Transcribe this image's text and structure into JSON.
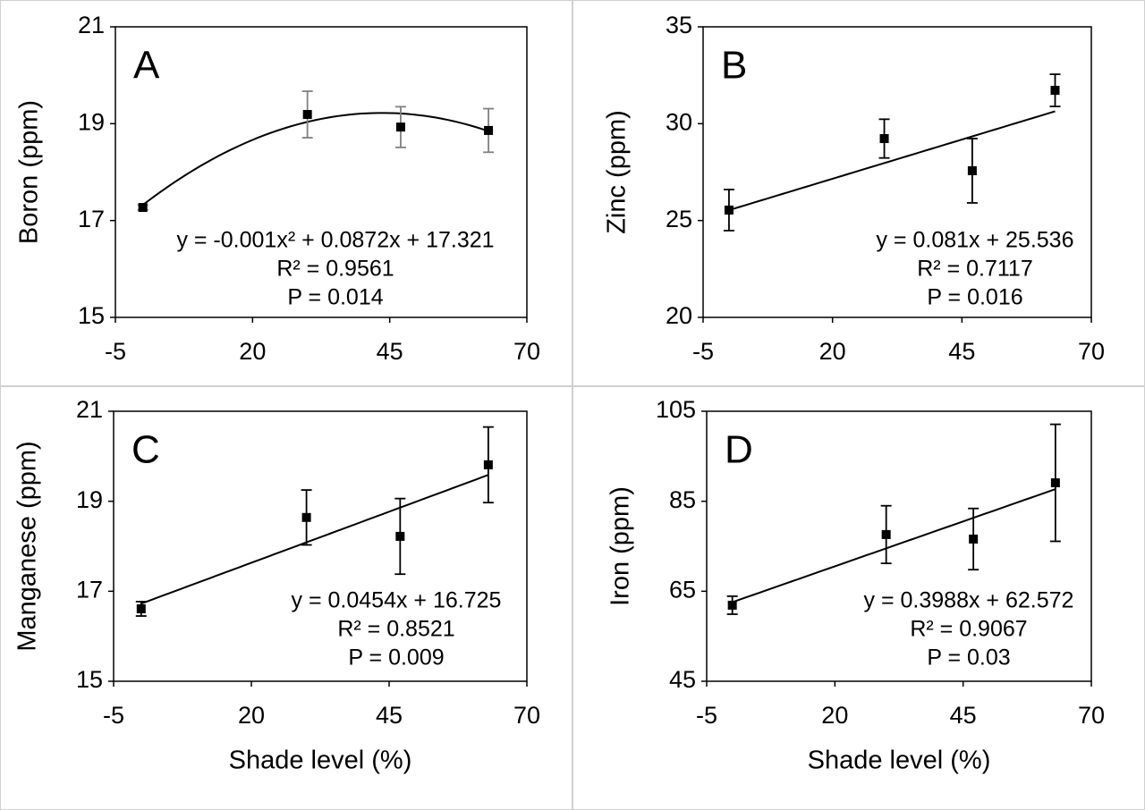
{
  "chart_data": [
    {
      "type": "scatter",
      "panel_label": "A",
      "y_label": "Boron (ppm)",
      "x": [
        0,
        30,
        47,
        63
      ],
      "values": [
        17.27,
        19.19,
        18.93,
        18.86
      ],
      "errors": [
        0.05,
        0.48,
        0.42,
        0.45
      ],
      "color": "#000000",
      "error_color": "#808080",
      "trendline": {
        "type": "polynomial",
        "coefficients": [
          -0.001,
          0.0872,
          17.321
        ],
        "color": "#000000"
      },
      "annotations": [
        "y = -0.001x² + 0.0872x + 17.321",
        "R² = 0.9561",
        "P = 0.014"
      ],
      "xlim": [
        -5,
        70
      ],
      "xticks": [
        -5,
        20,
        45,
        70
      ],
      "ylim": [
        15,
        21
      ],
      "yticks": [
        15,
        17,
        19,
        21
      ]
    },
    {
      "type": "scatter",
      "panel_label": "B",
      "y_label": "Zinc (ppm)",
      "x": [
        0,
        30,
        47,
        63
      ],
      "values": [
        25.54,
        29.23,
        27.57,
        31.72
      ],
      "errors": [
        1.06,
        1.0,
        1.66,
        0.83
      ],
      "color": "#000000",
      "error_color": "#000000",
      "trendline": {
        "type": "linear",
        "coefficients": [
          0.081,
          25.536
        ],
        "color": "#000000"
      },
      "annotations": [
        "y = 0.081x + 25.536",
        "R² = 0.7117",
        "P = 0.016"
      ],
      "xlim": [
        -5,
        70
      ],
      "xticks": [
        -5,
        20,
        45,
        70
      ],
      "ylim": [
        20,
        35
      ],
      "yticks": [
        20,
        25,
        30,
        35
      ]
    },
    {
      "type": "scatter",
      "panel_label": "C",
      "y_label": "Manganese (ppm)",
      "x_label": "Shade level (%)",
      "x": [
        0,
        30,
        47,
        63
      ],
      "values": [
        16.61,
        18.64,
        18.22,
        19.81
      ],
      "errors": [
        0.16,
        0.61,
        0.84,
        0.84
      ],
      "color": "#000000",
      "error_color": "#000000",
      "trendline": {
        "type": "linear",
        "coefficients": [
          0.0454,
          16.725
        ],
        "color": "#000000"
      },
      "annotations": [
        "y = 0.0454x + 16.725",
        "R² = 0.8521",
        "P = 0.009"
      ],
      "xlim": [
        -5,
        70
      ],
      "xticks": [
        -5,
        20,
        45,
        70
      ],
      "ylim": [
        15,
        21
      ],
      "yticks": [
        15,
        17,
        19,
        21
      ]
    },
    {
      "type": "scatter",
      "panel_label": "D",
      "y_label": "Iron (ppm)",
      "x_label": "Shade level (%)",
      "x": [
        0,
        30,
        47,
        63
      ],
      "values": [
        61.9,
        77.6,
        76.6,
        89.1
      ],
      "errors": [
        2,
        6.4,
        6.8,
        13
      ],
      "color": "#000000",
      "error_color": "#000000",
      "trendline": {
        "type": "linear",
        "coefficients": [
          0.3988,
          62.572
        ],
        "color": "#000000"
      },
      "annotations": [
        "y = 0.3988x + 62.572",
        "R² = 0.9067",
        "P = 0.03"
      ],
      "xlim": [
        -5,
        70
      ],
      "xticks": [
        -5,
        20,
        45,
        70
      ],
      "ylim": [
        45,
        105
      ],
      "yticks": [
        45,
        65,
        85,
        105
      ]
    }
  ]
}
